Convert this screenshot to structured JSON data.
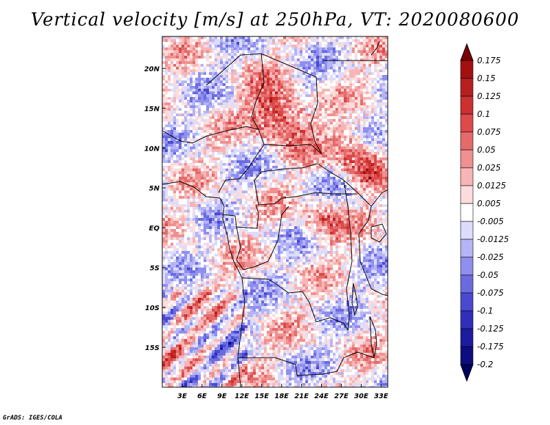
{
  "title": "Vertical velocity [m/s] at 250hPa, VT: 2020080600",
  "footer": "GrADS: IGES/COLA",
  "map": {
    "lon_range": [
      0,
      34
    ],
    "lat_range": [
      -20,
      24
    ],
    "lat_ticks": [
      {
        "value": 20,
        "label": "20N"
      },
      {
        "value": 15,
        "label": "15N"
      },
      {
        "value": 10,
        "label": "10N"
      },
      {
        "value": 5,
        "label": "5N"
      },
      {
        "value": 0,
        "label": "EQ"
      },
      {
        "value": -5,
        "label": "5S"
      },
      {
        "value": -10,
        "label": "10S"
      },
      {
        "value": -15,
        "label": "15S"
      }
    ],
    "lon_ticks": [
      {
        "value": 3,
        "label": "3E"
      },
      {
        "value": 6,
        "label": "6E"
      },
      {
        "value": 9,
        "label": "9E"
      },
      {
        "value": 12,
        "label": "12E"
      },
      {
        "value": 15,
        "label": "15E"
      },
      {
        "value": 18,
        "label": "18E"
      },
      {
        "value": 21,
        "label": "21E"
      },
      {
        "value": 24,
        "label": "24E"
      },
      {
        "value": 27,
        "label": "27E"
      },
      {
        "value": 30,
        "label": "30E"
      },
      {
        "value": 33,
        "label": "33E"
      }
    ]
  },
  "colorbar": {
    "labels": [
      "0.175",
      "0.15",
      "0.125",
      "0.1",
      "0.075",
      "0.05",
      "0.025",
      "0.0125",
      "0.005",
      "-0.005",
      "-0.0125",
      "-0.025",
      "-0.05",
      "-0.075",
      "-0.1",
      "-0.125",
      "-0.175",
      "-0.2"
    ],
    "colors": [
      "#7a0000",
      "#a31010",
      "#b82020",
      "#cc3030",
      "#dc4a4a",
      "#e56b6b",
      "#f09090",
      "#f8b5b5",
      "#fcdcdc",
      "#ffffff",
      "#dcdcfc",
      "#b5b5f5",
      "#8f8ff0",
      "#6b6be0",
      "#4a4ad0",
      "#2f2fba",
      "#1c1ca0",
      "#0d0d80",
      "#000060"
    ]
  }
}
